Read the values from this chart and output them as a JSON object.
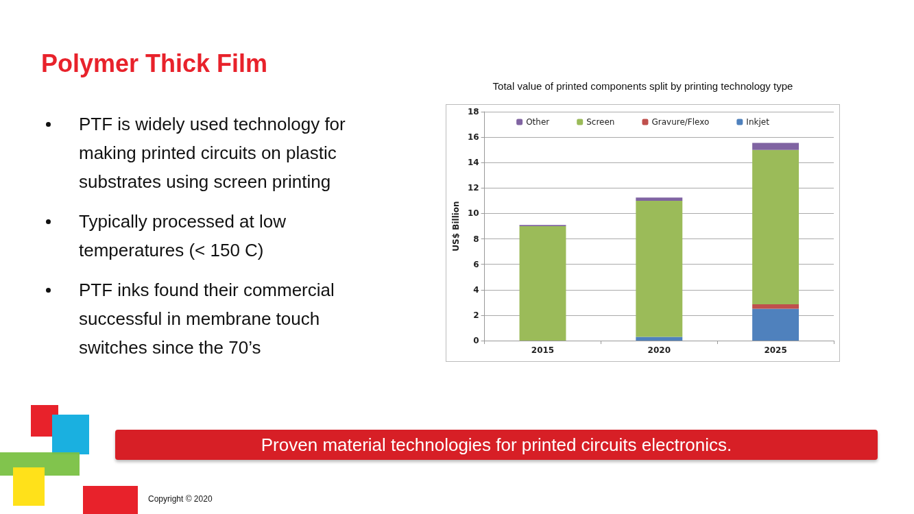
{
  "chart_data": {
    "type": "bar",
    "title": "Polymer Thick Film",
    "subtitle": "Total value of printed components split by printing technology type",
    "ylabel": "US$ Billion",
    "categories": [
      "2015",
      "2020",
      "2025"
    ],
    "stacked": true,
    "series": [
      {
        "name": "Inkjet",
        "color": "#4f81bd",
        "values": [
          0,
          0.3,
          2.5
        ]
      },
      {
        "name": "Gravure/Flexo",
        "color": "#c0504d",
        "values": [
          0,
          0,
          0.35
        ]
      },
      {
        "name": "Screen",
        "color": "#9bbb59",
        "values": [
          9.0,
          10.7,
          12.15
        ]
      },
      {
        "name": "Other",
        "color": "#8064a2",
        "values": [
          0.1,
          0.25,
          0.55
        ]
      }
    ],
    "ylim": [
      0,
      18
    ],
    "yticks": [
      0,
      2,
      4,
      6,
      8,
      10,
      12,
      14,
      16,
      18
    ],
    "grid": "y",
    "legend": "top",
    "annotations": [
      "PTF is widely used technology for making printed circuits on plastic substrates using screen printing",
      "Typically processed at low temperatures (< 150 C)",
      "PTF inks found their commercial successful in membrane touch switches since the 70’s",
      "Proven material technologies for printed circuits electronics.",
      "Copyright © 2020"
    ]
  }
}
